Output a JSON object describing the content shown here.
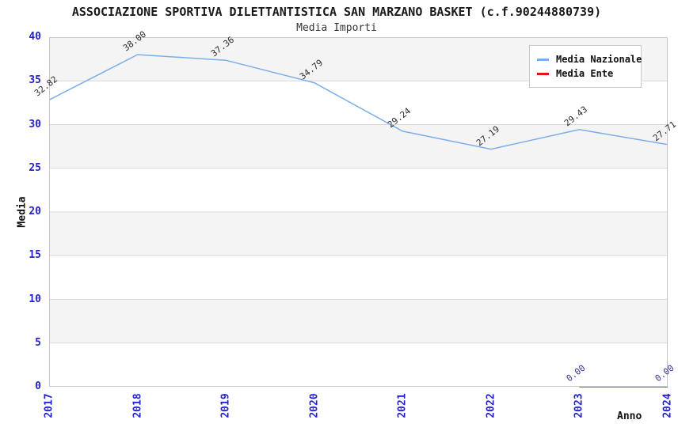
{
  "header": {
    "title": "ASSOCIAZIONE SPORTIVA DILETTANTISTICA SAN MARZANO BASKET (c.f.90244880739)",
    "subtitle": "Media Importi"
  },
  "axes": {
    "x_label": "Anno",
    "y_label": "Media",
    "y_ticks": [
      0,
      5,
      10,
      15,
      20,
      25,
      30,
      35,
      40
    ],
    "x_ticks": [
      "2017",
      "2018",
      "2019",
      "2020",
      "2021",
      "2022",
      "2023",
      "2024"
    ]
  },
  "legend": {
    "items": [
      {
        "label": "Media Nazionale",
        "color": "#7aaee8"
      },
      {
        "label": "Media Ente",
        "color": "#e01414"
      }
    ]
  },
  "colors": {
    "tick_text": "#2222cc",
    "national_line": "#7aaee8",
    "ente_line": "#e01414",
    "national_label_text": "#2b2b2b",
    "ente_label_text": "#333399",
    "stripe": "#f4f4f4",
    "gridline": "#d8d8d8",
    "plot_border": "#c8c8c8"
  },
  "chart_data": {
    "type": "line",
    "title": "ASSOCIAZIONE SPORTIVA DILETTANTISTICA SAN MARZANO BASKET (c.f.90244880739)",
    "subtitle": "Media Importi",
    "xlabel": "Anno",
    "ylabel": "Media",
    "x": [
      2017,
      2018,
      2019,
      2020,
      2021,
      2022,
      2023,
      2024
    ],
    "series": [
      {
        "name": "Media Nazionale",
        "color": "#7aaee8",
        "label_color": "#2b2b2b",
        "values": [
          32.82,
          38.0,
          37.36,
          34.79,
          29.24,
          27.19,
          29.43,
          27.71
        ]
      },
      {
        "name": "Media Ente",
        "color": "#e01414",
        "label_color": "#333399",
        "values": [
          null,
          null,
          null,
          null,
          null,
          null,
          0.0,
          0.0
        ]
      }
    ],
    "ylim": [
      0,
      40
    ],
    "grid": true,
    "background_stripes": true,
    "legend_position": "top-right",
    "data_label_decimals": 2
  }
}
